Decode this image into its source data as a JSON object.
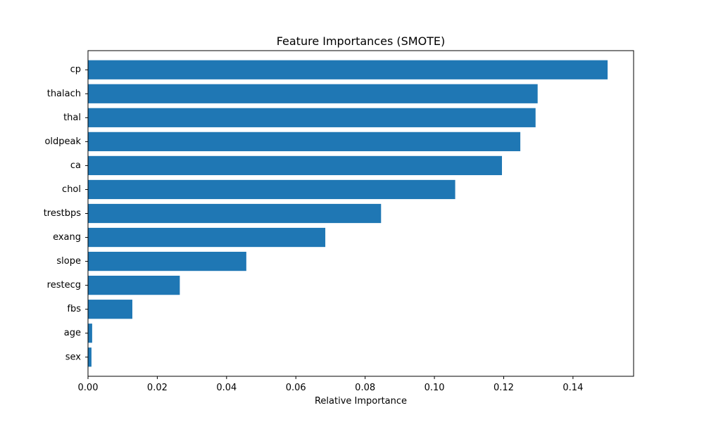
{
  "chart_data": {
    "type": "bar",
    "orientation": "horizontal",
    "title": "Feature Importances (SMOTE)",
    "xlabel": "Relative Importance",
    "ylabel": "",
    "xlim": [
      0,
      0.1575
    ],
    "xticks": [
      "0.00",
      "0.02",
      "0.04",
      "0.06",
      "0.08",
      "0.10",
      "0.12",
      "0.14"
    ],
    "xtick_values": [
      0,
      0.02,
      0.04,
      0.06,
      0.08,
      0.1,
      0.12,
      0.14
    ],
    "grid": false,
    "bar_color": "#1f77b4",
    "categories": [
      "cp",
      "thalach",
      "thal",
      "oldpeak",
      "ca",
      "chol",
      "trestbps",
      "exang",
      "slope",
      "restecg",
      "fbs",
      "age",
      "sex"
    ],
    "values": [
      0.15,
      0.1298,
      0.1292,
      0.1248,
      0.1195,
      0.106,
      0.0846,
      0.0685,
      0.0457,
      0.0265,
      0.0128,
      0.0012,
      0.001
    ]
  }
}
